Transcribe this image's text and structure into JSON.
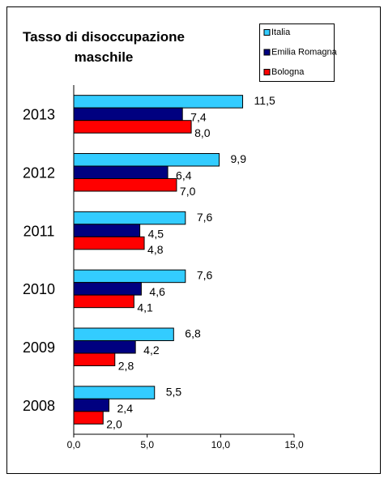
{
  "chart_data": {
    "type": "hbar",
    "title": "Tasso di disoccupazione maschile",
    "categories": [
      "2013",
      "2012",
      "2011",
      "2010",
      "2009",
      "2008"
    ],
    "series": [
      {
        "name": "Italia",
        "color": "#33ccff",
        "values": [
          11.5,
          9.9,
          7.6,
          7.6,
          6.8,
          5.5
        ],
        "value_labels": [
          "11,5",
          "9,9",
          "7,6",
          "7,6",
          "6,8",
          "5,5"
        ]
      },
      {
        "name": "Emilia Romagna",
        "color": "#000080",
        "values": [
          7.4,
          6.4,
          4.5,
          4.6,
          4.2,
          2.4
        ],
        "value_labels": [
          "7,4",
          "6,4",
          "4,5",
          "4,6",
          "4,2",
          "2,4"
        ]
      },
      {
        "name": "Bologna",
        "color": "#ff0000",
        "values": [
          8.0,
          7.0,
          4.8,
          4.1,
          2.8,
          2.0
        ],
        "value_labels": [
          "8,0",
          "7,0",
          "4,8",
          "4,1",
          "2,8",
          "2,0"
        ]
      }
    ],
    "xlim": [
      0,
      15
    ],
    "xticks": [
      {
        "value": 0,
        "label": "0,0"
      },
      {
        "value": 5,
        "label": "5,0"
      },
      {
        "value": 10,
        "label": "10,0"
      },
      {
        "value": 15,
        "label": "15,0"
      }
    ],
    "grid": false,
    "legend": "top-right"
  }
}
